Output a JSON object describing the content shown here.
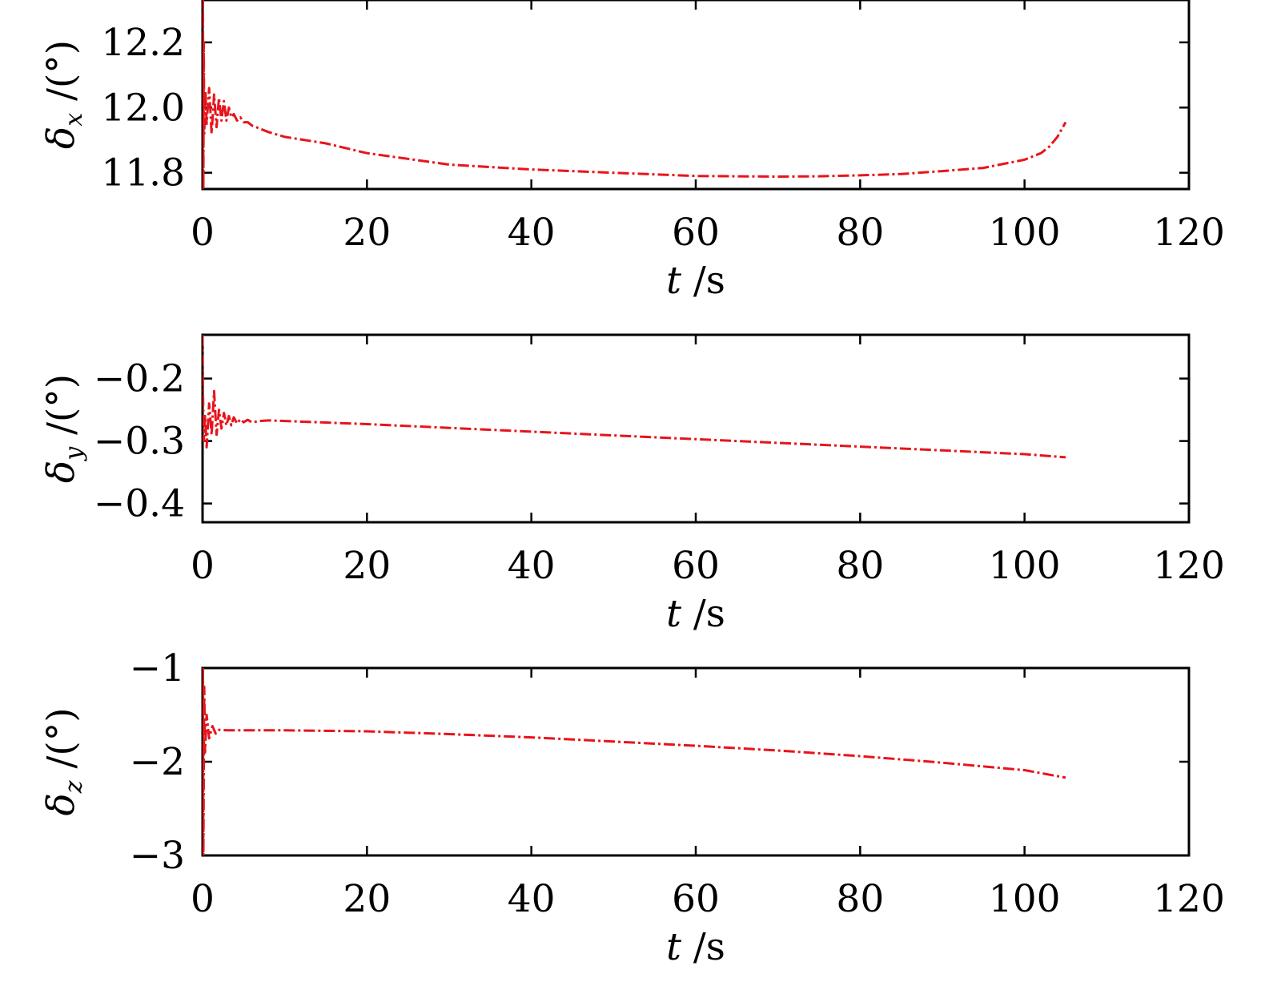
{
  "chart_data": [
    {
      "type": "line",
      "ylabel": {
        "symbol": "δ",
        "sub": "x",
        "unit": " /(°)"
      },
      "xlabel": {
        "symbol": "t",
        "unit": " /s"
      },
      "xlim": [
        0,
        120
      ],
      "ylim": [
        11.75,
        12.33
      ],
      "xticks": [
        "0",
        "20",
        "40",
        "60",
        "80",
        "100",
        "120"
      ],
      "yticks": [
        "11.8",
        "12.0",
        "12.2"
      ],
      "ytick_values": [
        11.8,
        12.0,
        12.2
      ],
      "grid": false,
      "color": "#e8141b",
      "series": [
        {
          "x": [
            0,
            0.05,
            0.1,
            0.15,
            0.2,
            0.35,
            0.5,
            0.8,
            1.1,
            1.4,
            1.7,
            2.0,
            2.3,
            2.6,
            2.9,
            3.2,
            3.5,
            3.8,
            4.2,
            4.6,
            5.0,
            5.5,
            6,
            7,
            8,
            10,
            15,
            20,
            30,
            40,
            50,
            60,
            65,
            70,
            75,
            80,
            85,
            90,
            95,
            100,
            102,
            103,
            104,
            105
          ],
          "y": [
            11.75,
            12.33,
            11.75,
            12.2,
            11.92,
            12.05,
            11.95,
            12.06,
            11.92,
            12.04,
            11.94,
            12.03,
            11.96,
            12.02,
            11.96,
            12.0,
            11.97,
            11.98,
            11.96,
            11.97,
            11.955,
            11.955,
            11.945,
            11.935,
            11.925,
            11.91,
            11.89,
            11.86,
            11.825,
            11.81,
            11.8,
            11.79,
            11.789,
            11.788,
            11.789,
            11.792,
            11.796,
            11.805,
            11.815,
            11.84,
            11.86,
            11.88,
            11.91,
            11.955
          ]
        }
      ]
    },
    {
      "type": "line",
      "ylabel": {
        "symbol": "δ",
        "sub": "y",
        "unit": " /(°)"
      },
      "xlabel": {
        "symbol": "t",
        "unit": " /s"
      },
      "xlim": [
        0,
        120
      ],
      "ylim": [
        -0.43,
        -0.13
      ],
      "xticks": [
        "0",
        "20",
        "40",
        "60",
        "80",
        "100",
        "120"
      ],
      "yticks": [
        "−0.2",
        "−0.3",
        "−0.4"
      ],
      "ytick_values": [
        -0.2,
        -0.3,
        -0.4
      ],
      "grid": false,
      "color": "#e8141b",
      "series": [
        {
          "x": [
            0,
            0.05,
            0.15,
            0.3,
            0.5,
            0.8,
            1.1,
            1.4,
            1.7,
            2.0,
            2.3,
            2.6,
            2.9,
            3.2,
            3.5,
            3.8,
            4.2,
            4.6,
            5.0,
            5.5,
            6,
            7,
            8,
            10,
            20,
            30,
            40,
            50,
            60,
            70,
            80,
            90,
            100,
            105
          ],
          "y": [
            -0.13,
            -0.22,
            -0.3,
            -0.26,
            -0.31,
            -0.24,
            -0.29,
            -0.22,
            -0.29,
            -0.25,
            -0.28,
            -0.255,
            -0.275,
            -0.26,
            -0.275,
            -0.262,
            -0.272,
            -0.265,
            -0.27,
            -0.266,
            -0.27,
            -0.268,
            -0.267,
            -0.268,
            -0.273,
            -0.279,
            -0.285,
            -0.291,
            -0.297,
            -0.303,
            -0.309,
            -0.315,
            -0.321,
            -0.326
          ]
        }
      ]
    },
    {
      "type": "line",
      "ylabel": {
        "symbol": "δ",
        "sub": "z",
        "unit": " /(°)"
      },
      "xlabel": {
        "symbol": "t",
        "unit": " /s"
      },
      "xlim": [
        0,
        120
      ],
      "ylim": [
        -3,
        -1
      ],
      "xticks": [
        "0",
        "20",
        "40",
        "60",
        "80",
        "100",
        "120"
      ],
      "yticks": [
        "−1",
        "−2",
        "−3"
      ],
      "ytick_values": [
        -1,
        -2,
        -3
      ],
      "grid": false,
      "color": "#e8141b",
      "series": [
        {
          "x": [
            0,
            0.05,
            0.1,
            0.2,
            0.3,
            0.5,
            0.8,
            1.2,
            1.6,
            2.0,
            3,
            5,
            10,
            20,
            30,
            40,
            50,
            60,
            70,
            80,
            90,
            100,
            105
          ],
          "y": [
            -3,
            -1,
            -3,
            -1.2,
            -1.9,
            -1.5,
            -1.75,
            -1.62,
            -1.7,
            -1.66,
            -1.665,
            -1.665,
            -1.665,
            -1.675,
            -1.705,
            -1.74,
            -1.785,
            -1.83,
            -1.88,
            -1.94,
            -2.01,
            -2.09,
            -2.17
          ]
        }
      ]
    }
  ]
}
